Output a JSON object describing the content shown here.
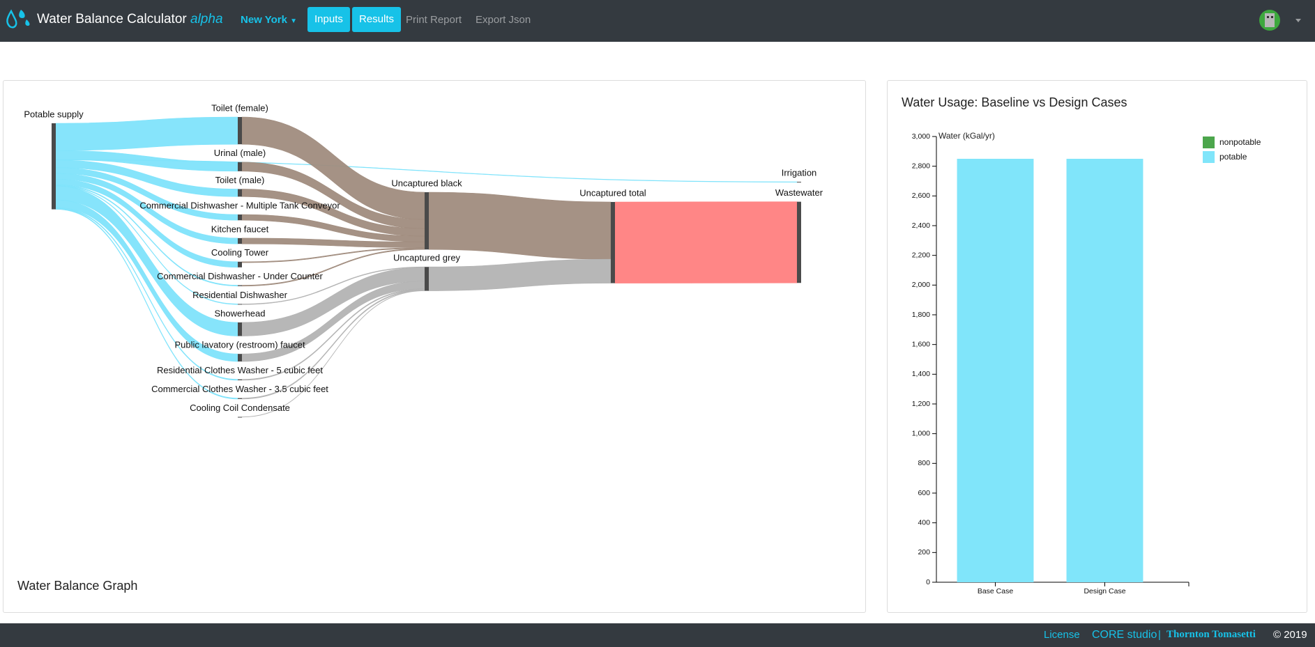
{
  "navbar": {
    "title": "Water Balance Calculator",
    "title_suffix": "alpha",
    "location": "New York",
    "buttons": [
      "Inputs",
      "Results"
    ],
    "links": [
      "Print Report",
      "Export Json"
    ]
  },
  "chart_data": [
    {
      "type": "sankey",
      "title": "Water Balance Graph",
      "nodes": [
        {
          "label": "Potable supply"
        },
        {
          "label": "Toilet (female)"
        },
        {
          "label": "Urinal (male)"
        },
        {
          "label": "Toilet (male)"
        },
        {
          "label": "Commercial Dishwasher - Multiple Tank Conveyor"
        },
        {
          "label": "Kitchen faucet"
        },
        {
          "label": "Cooling Tower"
        },
        {
          "label": "Commercial Dishwasher - Under Counter"
        },
        {
          "label": "Residential Dishwasher"
        },
        {
          "label": "Showerhead"
        },
        {
          "label": "Public lavatory (restroom) faucet"
        },
        {
          "label": "Residential Clothes Washer - 5 cubic feet"
        },
        {
          "label": "Commercial Clothes Washer - 3.5 cubic feet"
        },
        {
          "label": "Cooling Coil Condensate"
        },
        {
          "label": "Uncaptured black"
        },
        {
          "label": "Uncaptured grey"
        },
        {
          "label": "Uncaptured total"
        },
        {
          "label": "Irrigation"
        },
        {
          "label": "Wastewater"
        }
      ],
      "links": [
        {
          "source": 0,
          "target": 1,
          "value": 900,
          "color": "#7fe3fb"
        },
        {
          "source": 0,
          "target": 2,
          "value": 300,
          "color": "#7fe3fb"
        },
        {
          "source": 0,
          "target": 17,
          "value": 15,
          "color": "#7fe3fb"
        },
        {
          "source": 0,
          "target": 3,
          "value": 250,
          "color": "#7fe3fb"
        },
        {
          "source": 0,
          "target": 4,
          "value": 190,
          "color": "#7fe3fb"
        },
        {
          "source": 0,
          "target": 5,
          "value": 190,
          "color": "#7fe3fb"
        },
        {
          "source": 0,
          "target": 6,
          "value": 185,
          "color": "#7fe3fb"
        },
        {
          "source": 0,
          "target": 7,
          "value": 30,
          "color": "#7fe3fb"
        },
        {
          "source": 0,
          "target": 8,
          "value": 20,
          "color": "#7fe3fb"
        },
        {
          "source": 0,
          "target": 9,
          "value": 450,
          "color": "#7fe3fb"
        },
        {
          "source": 0,
          "target": 10,
          "value": 250,
          "color": "#7fe3fb"
        },
        {
          "source": 0,
          "target": 11,
          "value": 30,
          "color": "#7fe3fb"
        },
        {
          "source": 0,
          "target": 12,
          "value": 30,
          "color": "#7fe3fb"
        },
        {
          "source": 1,
          "target": 14,
          "value": 900,
          "color": "#a08c7e"
        },
        {
          "source": 2,
          "target": 14,
          "value": 300,
          "color": "#a08c7e"
        },
        {
          "source": 3,
          "target": 14,
          "value": 250,
          "color": "#a08c7e"
        },
        {
          "source": 4,
          "target": 14,
          "value": 190,
          "color": "#a08c7e"
        },
        {
          "source": 5,
          "target": 14,
          "value": 190,
          "color": "#a08c7e"
        },
        {
          "source": 6,
          "target": 14,
          "value": 30,
          "color": "#a08c7e"
        },
        {
          "source": 7,
          "target": 14,
          "value": 30,
          "color": "#a08c7e"
        },
        {
          "source": 8,
          "target": 15,
          "value": 20,
          "color": "#b3b3b3"
        },
        {
          "source": 9,
          "target": 15,
          "value": 450,
          "color": "#b3b3b3"
        },
        {
          "source": 10,
          "target": 15,
          "value": 250,
          "color": "#b3b3b3"
        },
        {
          "source": 11,
          "target": 15,
          "value": 30,
          "color": "#b3b3b3"
        },
        {
          "source": 12,
          "target": 15,
          "value": 30,
          "color": "#b3b3b3"
        },
        {
          "source": 13,
          "target": 15,
          "value": 10,
          "color": "#b3b3b3"
        },
        {
          "source": 14,
          "target": 16,
          "value": 1890,
          "color": "#a08c7e"
        },
        {
          "source": 15,
          "target": 16,
          "value": 790,
          "color": "#b3b3b3"
        },
        {
          "source": 16,
          "target": 18,
          "value": 2680,
          "color": "#ff8080"
        }
      ]
    },
    {
      "type": "bar",
      "stacked": true,
      "title": "Water Usage: Baseline vs Design Cases",
      "y_label": "Water (kGal/yr)",
      "categories": [
        "Base Case",
        "Design Case"
      ],
      "series": [
        {
          "name": "nonpotable",
          "color": "#4ca64c",
          "values": [
            0,
            0
          ]
        },
        {
          "name": "potable",
          "color": "#80e5fa",
          "values": [
            2850,
            2850
          ]
        }
      ],
      "ylim": [
        0,
        3000
      ],
      "yticks": [
        0,
        200,
        400,
        600,
        800,
        {
          "value": 1000,
          "label": "1,000"
        },
        {
          "value": 1200,
          "label": "1,200"
        },
        {
          "value": 1400,
          "label": "1,400"
        },
        {
          "value": 1600,
          "label": "1,600"
        },
        {
          "value": 1800,
          "label": "1,800"
        },
        {
          "value": 2000,
          "label": "2,000"
        },
        {
          "value": 2200,
          "label": "2,200"
        },
        {
          "value": 2400,
          "label": "2,400"
        },
        {
          "value": 2600,
          "label": "2,600"
        },
        {
          "value": 2800,
          "label": "2,800"
        },
        {
          "value": 3000,
          "label": "3,000"
        }
      ]
    }
  ],
  "footer": {
    "license": "License",
    "studio": "CORE studio",
    "separator": "|",
    "company": "Thornton Tomasetti",
    "copyright": "© 2019"
  }
}
